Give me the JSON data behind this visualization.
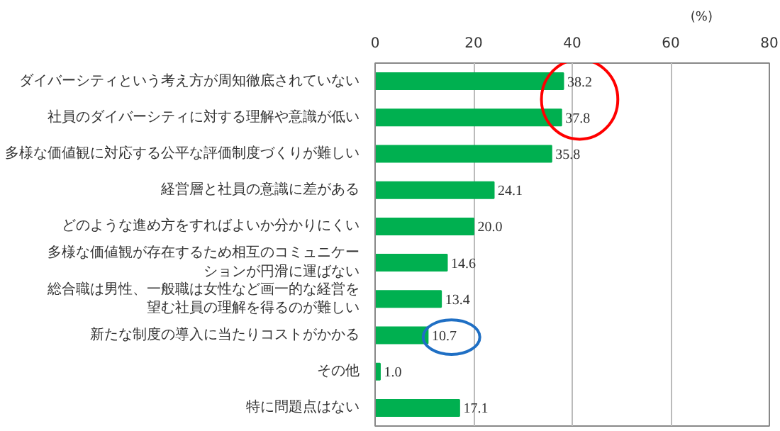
{
  "chart_data": {
    "type": "bar",
    "orientation": "horizontal",
    "xlabel": "(%)",
    "categories": [
      "ダイバーシティという考え方が周知徹底されていない",
      "社員のダイバーシティに対する理解や意識が低い",
      "多様な価値観に対応する公平な評価制度づくりが難しい",
      "経営層と社員の意識に差がある",
      "どのような進め方をすればよいか分かりにくい",
      "多様な価値観が存在するため相互のコミュニケーションが円滑に運ばない",
      "総合職は男性、一般職は女性など画一的な経営を望む社員の理解を得るのが難しい",
      "新たな制度の導入に当たりコストがかかる",
      "その他",
      "特に問題点はない"
    ],
    "values": [
      38.2,
      37.8,
      35.8,
      24.1,
      20.0,
      14.6,
      13.4,
      10.7,
      1.0,
      17.1
    ],
    "value_labels": [
      "38.2",
      "37.8",
      "35.8",
      "24.1",
      "20.0",
      "14.6",
      "13.4",
      "10.7",
      "1.0",
      "17.1"
    ],
    "color": "#00b050",
    "xlim": [
      0,
      80
    ],
    "xticks": [
      0,
      20,
      40,
      60,
      80
    ],
    "grid": "x"
  }
}
